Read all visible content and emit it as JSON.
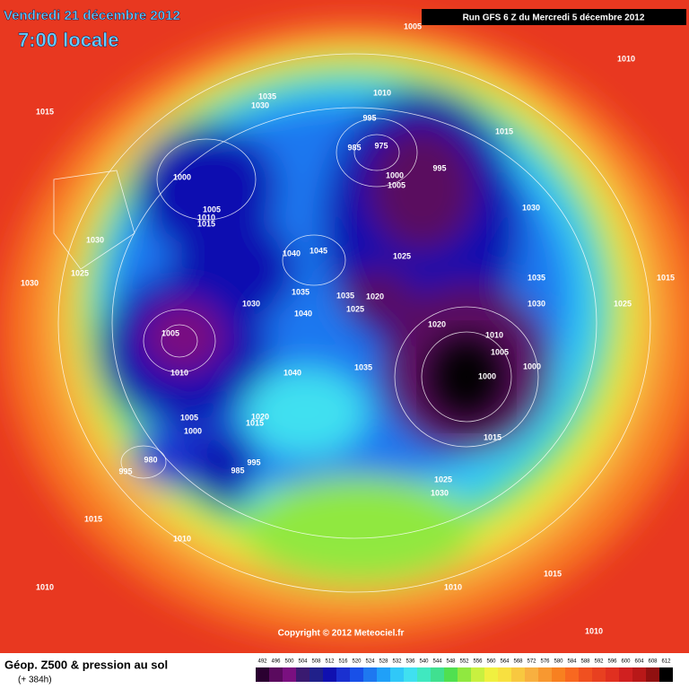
{
  "header": {
    "date": "Vendredi 21 décembre 2012",
    "time": "7:00 locale",
    "run": "Run GFS 6 Z du Mercredi 5 décembre 2012"
  },
  "copyright": "Copyright © 2012 Meteociel.fr",
  "footer": {
    "title": "Géop. Z500 & pression au sol",
    "lead": "(+ 384h)"
  },
  "isobar_labels": [
    "1005",
    "1010",
    "1015",
    "1035",
    "1030",
    "1010",
    "995",
    "985",
    "975",
    "1000",
    "1005",
    "995",
    "1015",
    "1000",
    "1005",
    "1010",
    "1015",
    "1030",
    "1030",
    "1045",
    "1040",
    "1025",
    "1025",
    "1035",
    "1015",
    "1030",
    "1035",
    "1035",
    "1020",
    "1025",
    "1030",
    "1030",
    "1025",
    "1040",
    "1005",
    "1020",
    "1010",
    "1005",
    "1000",
    "1040",
    "1035",
    "1010",
    "1000",
    "1005",
    "1020",
    "1015",
    "1000",
    "1015",
    "980",
    "995",
    "985",
    "995",
    "1025",
    "1030",
    "1015",
    "1010",
    "1015",
    "1010",
    "1010",
    "1010"
  ],
  "legend": {
    "labels": [
      492,
      496,
      500,
      504,
      508,
      512,
      516,
      520,
      524,
      528,
      532,
      536,
      540,
      544,
      548,
      552,
      556,
      560,
      564,
      568,
      572,
      576,
      580,
      584,
      588,
      592,
      596,
      600,
      604,
      608,
      612
    ],
    "colors": [
      "#2a0030",
      "#5a0a5e",
      "#7a1080",
      "#3a1a70",
      "#20208a",
      "#1010b0",
      "#1a30d0",
      "#1850e8",
      "#1e78f0",
      "#20a0f8",
      "#30c8f8",
      "#40e0f0",
      "#40e8c0",
      "#40e090",
      "#50e050",
      "#90e840",
      "#c8f040",
      "#f0f040",
      "#f8e040",
      "#f8c840",
      "#f8b040",
      "#f89830",
      "#f88020",
      "#f86820",
      "#f05020",
      "#e84020",
      "#e03020",
      "#d02020",
      "#b81818",
      "#901010",
      "#000000"
    ]
  }
}
